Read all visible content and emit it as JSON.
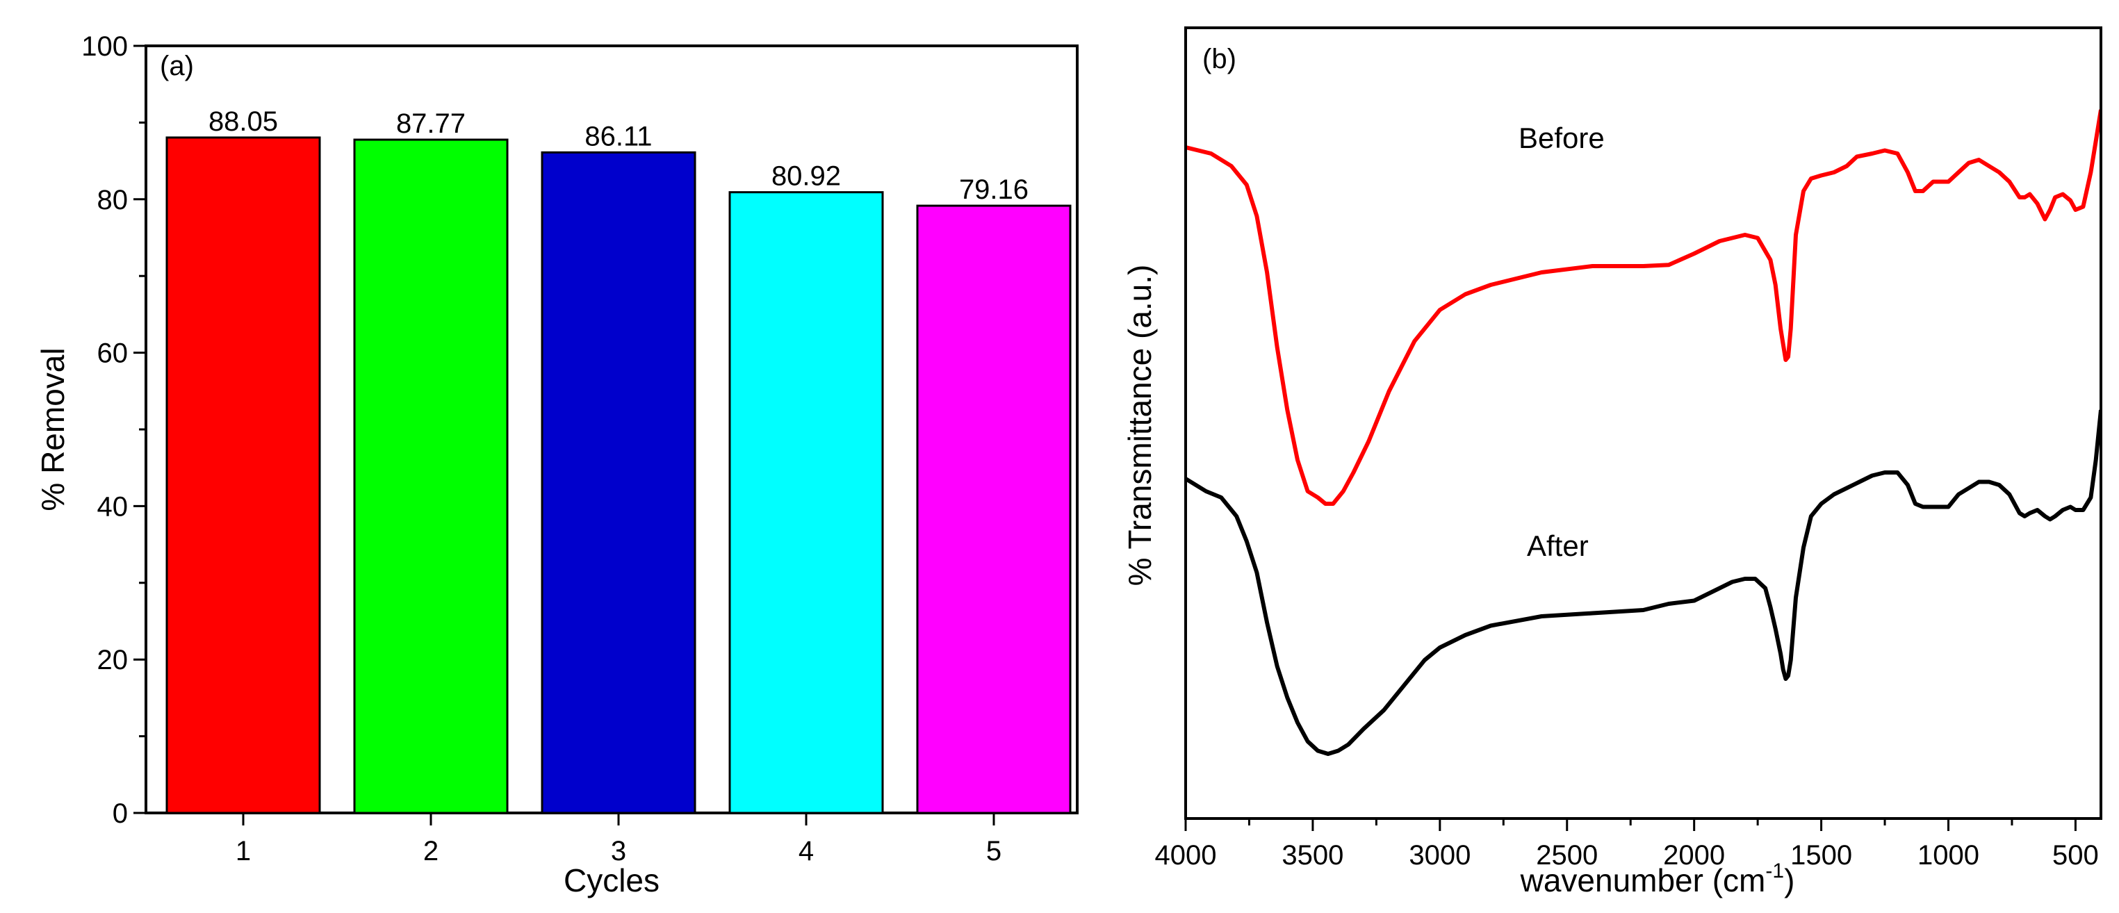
{
  "chart_data": [
    {
      "type": "bar",
      "panel_label": "(a)",
      "categories": [
        "1",
        "2",
        "3",
        "4",
        "5"
      ],
      "values": [
        88.05,
        87.77,
        86.11,
        80.92,
        79.16
      ],
      "value_labels": [
        "88.05",
        "87.77",
        "86.11",
        "80.92",
        "79.16"
      ],
      "colors": [
        "#ff0000",
        "#00ff00",
        "#0000cc",
        "#00ffff",
        "#ff00ff"
      ],
      "xlabel": "Cycles",
      "ylabel": "% Removal",
      "ylim": [
        0,
        100
      ],
      "yticks": [
        "0",
        "20",
        "40",
        "60",
        "80",
        "100"
      ],
      "grid": false
    },
    {
      "type": "line",
      "panel_label": "(b)",
      "xlabel": "wavenumber (cm",
      "xlabel_sup": "-1",
      "xlabel_close": ")",
      "ylabel": "% Transmittance (a.u.)",
      "xlim": [
        4000,
        400
      ],
      "ylim": [
        0,
        100
      ],
      "xticks": [
        "4000",
        "3500",
        "3000",
        "2500",
        "2000",
        "1500",
        "1000",
        "500"
      ],
      "grid": false,
      "series": [
        {
          "name": "Before",
          "color": "#ff0000",
          "x": [
            4000,
            3900,
            3820,
            3760,
            3720,
            3680,
            3640,
            3600,
            3560,
            3520,
            3480,
            3450,
            3420,
            3380,
            3340,
            3280,
            3200,
            3100,
            3000,
            2900,
            2800,
            2600,
            2400,
            2200,
            2100,
            2000,
            1900,
            1800,
            1750,
            1700,
            1680,
            1660,
            1640,
            1630,
            1620,
            1600,
            1570,
            1540,
            1500,
            1450,
            1400,
            1360,
            1300,
            1250,
            1200,
            1160,
            1130,
            1100,
            1060,
            1000,
            960,
            920,
            880,
            840,
            800,
            760,
            720,
            700,
            680,
            650,
            620,
            600,
            580,
            550,
            520,
            500,
            470,
            440,
            420,
            400
          ],
          "y": [
            92,
            91,
            89,
            86,
            81,
            72,
            60,
            50,
            42,
            37,
            36,
            35,
            35,
            37,
            40,
            45,
            53,
            61,
            66,
            68.5,
            70,
            72,
            73,
            73,
            73.2,
            75,
            77,
            78,
            77.5,
            74,
            70,
            63,
            58,
            58.5,
            63,
            78,
            85,
            87,
            87.5,
            88,
            89,
            90.5,
            91,
            91.5,
            91,
            88,
            85,
            85,
            86.5,
            86.5,
            88,
            89.5,
            90,
            89,
            88,
            86.5,
            84,
            84,
            84.5,
            83,
            80.5,
            82,
            84,
            84.5,
            83.5,
            82,
            82.5,
            88,
            93,
            98
          ]
        },
        {
          "name": "After",
          "color": "#000000",
          "x": [
            4000,
            3920,
            3860,
            3800,
            3760,
            3720,
            3680,
            3640,
            3600,
            3560,
            3520,
            3480,
            3440,
            3400,
            3360,
            3300,
            3220,
            3140,
            3060,
            3000,
            2900,
            2800,
            2600,
            2400,
            2200,
            2100,
            2000,
            1900,
            1850,
            1800,
            1760,
            1720,
            1700,
            1680,
            1660,
            1650,
            1640,
            1630,
            1620,
            1600,
            1570,
            1540,
            1500,
            1450,
            1400,
            1350,
            1300,
            1250,
            1200,
            1160,
            1130,
            1100,
            1060,
            1000,
            960,
            920,
            880,
            840,
            800,
            760,
            720,
            700,
            680,
            650,
            620,
            600,
            580,
            550,
            520,
            500,
            470,
            440,
            420,
            400
          ],
          "y": [
            39,
            37,
            36,
            33,
            29,
            24,
            16,
            9,
            4,
            0,
            -3,
            -4.5,
            -5,
            -4.5,
            -3.5,
            -1,
            2,
            6,
            10,
            12,
            14,
            15.5,
            17,
            17.5,
            18,
            19,
            19.5,
            21.5,
            22.5,
            23,
            23,
            21.5,
            18.5,
            15,
            11,
            8.5,
            7,
            7.5,
            10,
            20,
            28,
            33,
            35,
            36.5,
            37.5,
            38.5,
            39.5,
            40,
            40,
            38,
            35,
            34.5,
            34.5,
            34.5,
            36.5,
            37.5,
            38.5,
            38.5,
            38,
            36.5,
            33.5,
            33,
            33.5,
            34,
            33,
            32.5,
            33,
            34,
            34.5,
            34,
            34,
            36,
            42,
            50
          ]
        }
      ]
    }
  ]
}
